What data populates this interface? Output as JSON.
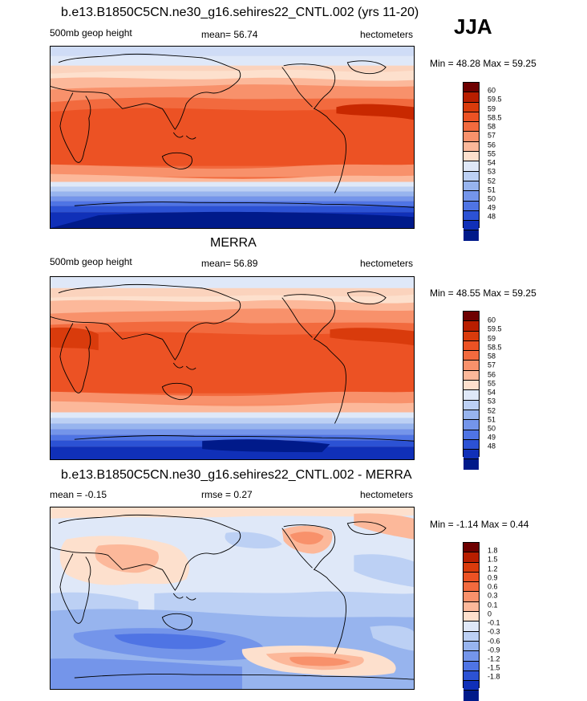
{
  "season": "JJA",
  "panels": [
    {
      "title": "b.e13.B1850C5CN.ne30_g16.sehires22_CNTL.002 (yrs 11-20)",
      "left_label": "500mb geop height",
      "center_label": "mean=  56.74",
      "right_label": "hectometers",
      "minmax": "Min =  48.28 Max =  59.25",
      "colorbar_labels": [
        "60",
        "59.5",
        "59",
        "58.5",
        "58",
        "57",
        "56",
        "55",
        "54",
        "53",
        "52",
        "51",
        "50",
        "49",
        "48"
      ],
      "colors": [
        "#6e0000",
        "#b81e00",
        "#d93b0c",
        "#ec5224",
        "#f26a3e",
        "#f8916b",
        "#fcb89a",
        "#fde0cd",
        "#dfe8f8",
        "#bcd0f4",
        "#97b4ee",
        "#7495ea",
        "#4f74e4",
        "#2c52d4",
        "#1030b8",
        "#001a8a"
      ]
    },
    {
      "title": "MERRA",
      "left_label": "500mb geop height",
      "center_label": "mean=  56.89",
      "right_label": "hectometers",
      "minmax": "Min =  48.55 Max =  59.25",
      "colorbar_labels": [
        "60",
        "59.5",
        "59",
        "58.5",
        "58",
        "57",
        "56",
        "55",
        "54",
        "53",
        "52",
        "51",
        "50",
        "49",
        "48"
      ],
      "colors": [
        "#6e0000",
        "#b81e00",
        "#d93b0c",
        "#ec5224",
        "#f26a3e",
        "#f8916b",
        "#fcb89a",
        "#fde0cd",
        "#dfe8f8",
        "#bcd0f4",
        "#97b4ee",
        "#7495ea",
        "#4f74e4",
        "#2c52d4",
        "#1030b8",
        "#001a8a"
      ]
    },
    {
      "title": "b.e13.B1850C5CN.ne30_g16.sehires22_CNTL.002 - MERRA",
      "left_label": "mean =  -0.15",
      "center_label": "rmse =   0.27",
      "right_label": "hectometers",
      "minmax": "Min =  -1.14 Max =   0.44",
      "colorbar_labels": [
        "1.8",
        "1.5",
        "1.2",
        "0.9",
        "0.6",
        "0.3",
        "0.1",
        "0",
        "-0.1",
        "-0.3",
        "-0.6",
        "-0.9",
        "-1.2",
        "-1.5",
        "-1.8"
      ],
      "colors": [
        "#6e0000",
        "#b81e00",
        "#d93b0c",
        "#ec5224",
        "#f26a3e",
        "#f8916b",
        "#fcb89a",
        "#fde0cd",
        "#dfe8f8",
        "#bcd0f4",
        "#97b4ee",
        "#7495ea",
        "#4f74e4",
        "#2c52d4",
        "#1030b8",
        "#001a8a"
      ]
    }
  ]
}
